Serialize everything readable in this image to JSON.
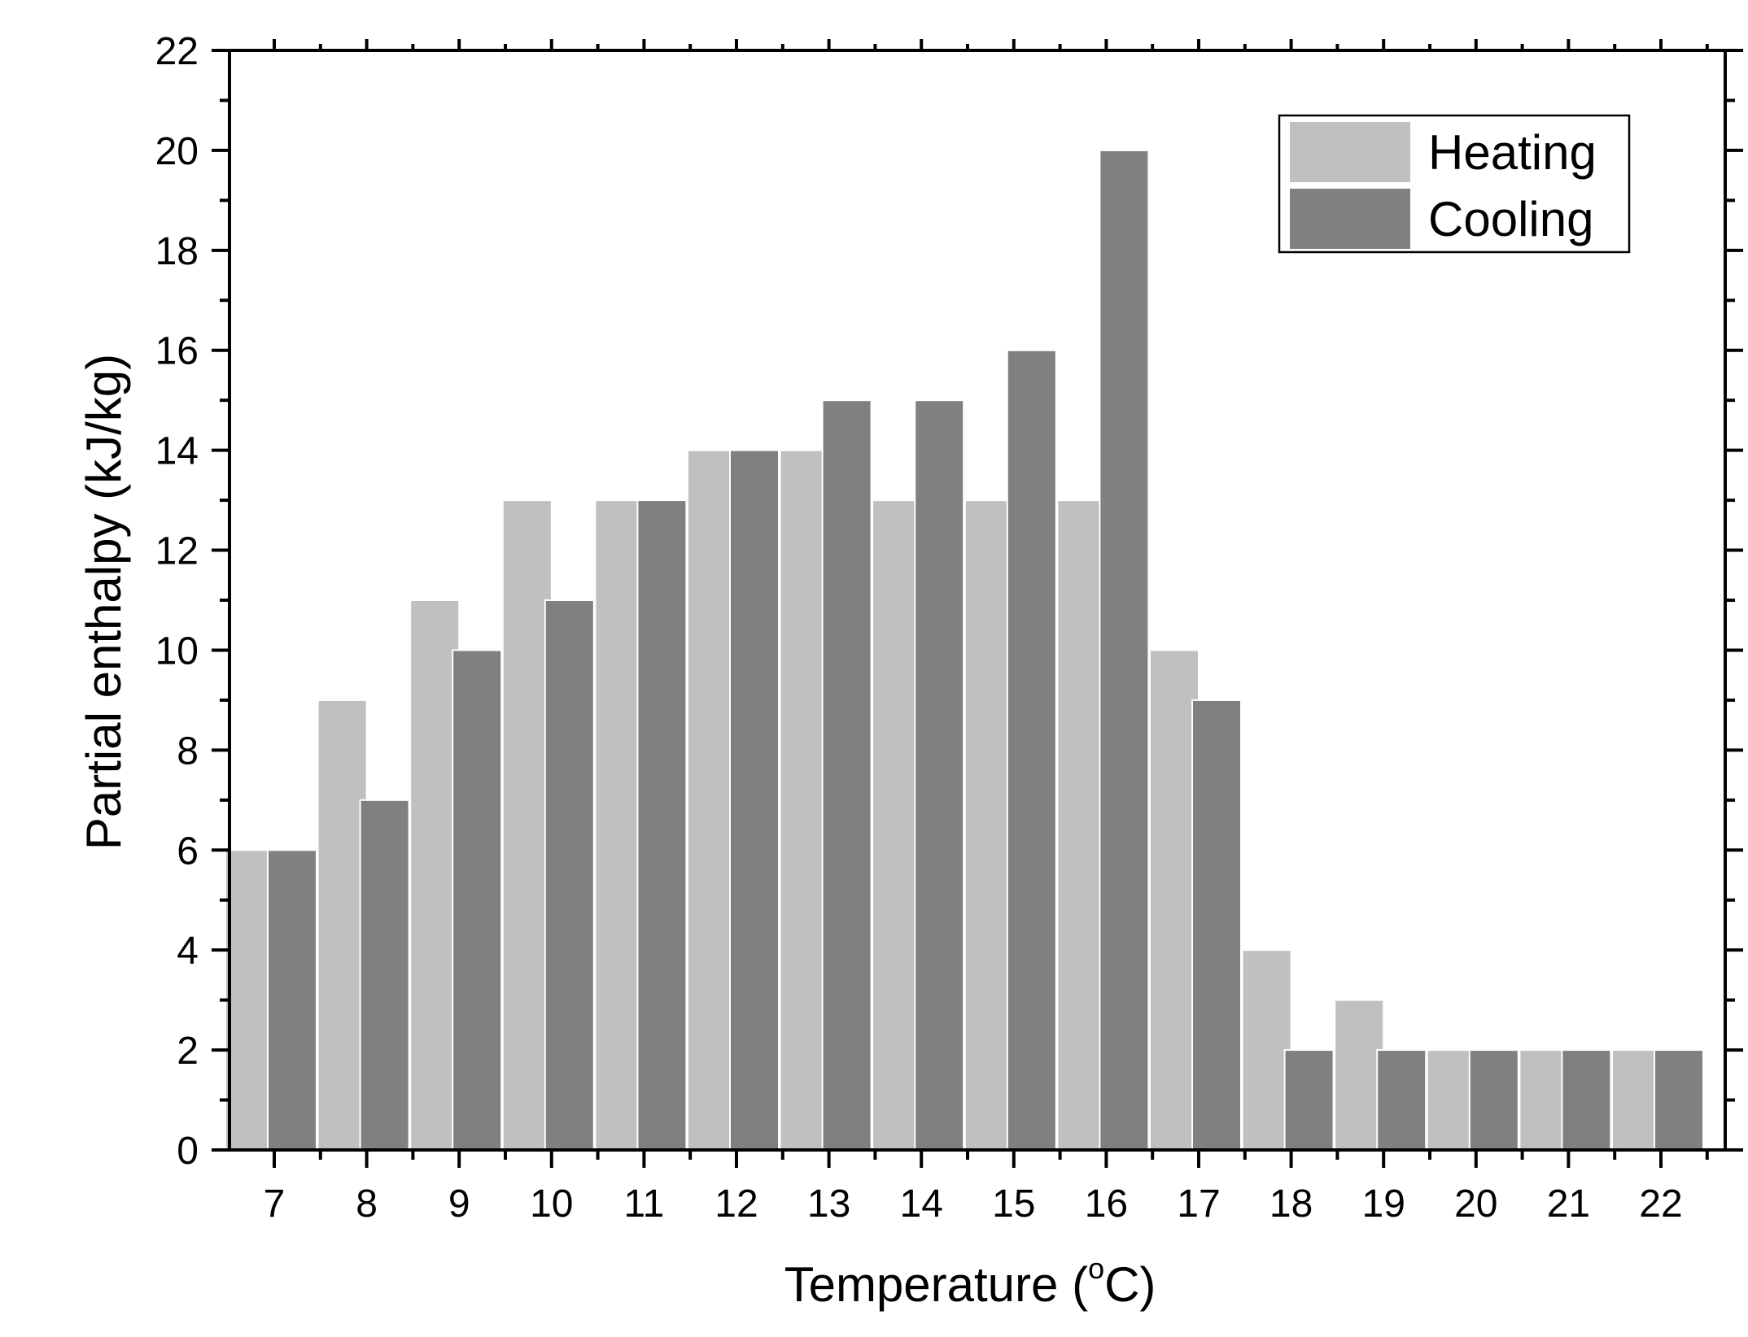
{
  "chart_data": {
    "type": "bar",
    "title": "",
    "xlabel": "Temperature (",
    "xlabel_sup": "o",
    "xlabel_suffix": "C)",
    "ylabel": "Partial enthalpy (kJ/kg)",
    "categories": [
      "7",
      "8",
      "9",
      "10",
      "11",
      "12",
      "13",
      "14",
      "15",
      "16",
      "17",
      "18",
      "19",
      "20",
      "21",
      "22"
    ],
    "series": [
      {
        "name": "Heating",
        "color": "#c0c0c0",
        "values": [
          6,
          9,
          11,
          13,
          13,
          14,
          14,
          13,
          13,
          13,
          10,
          4,
          3,
          2,
          2,
          2
        ]
      },
      {
        "name": "Cooling",
        "color": "#808080",
        "values": [
          6,
          7,
          10,
          11,
          13,
          14,
          15,
          15,
          16,
          20,
          9,
          2,
          2,
          2,
          2,
          2
        ]
      }
    ],
    "ylim": [
      0,
      22
    ],
    "yticks": [
      0,
      2,
      4,
      6,
      8,
      10,
      12,
      14,
      16,
      18,
      20,
      22
    ],
    "grid": false,
    "legend_position": "top-right",
    "colors": {
      "heating": "#c0c0c0",
      "cooling": "#808080",
      "axis": "#000000"
    }
  }
}
